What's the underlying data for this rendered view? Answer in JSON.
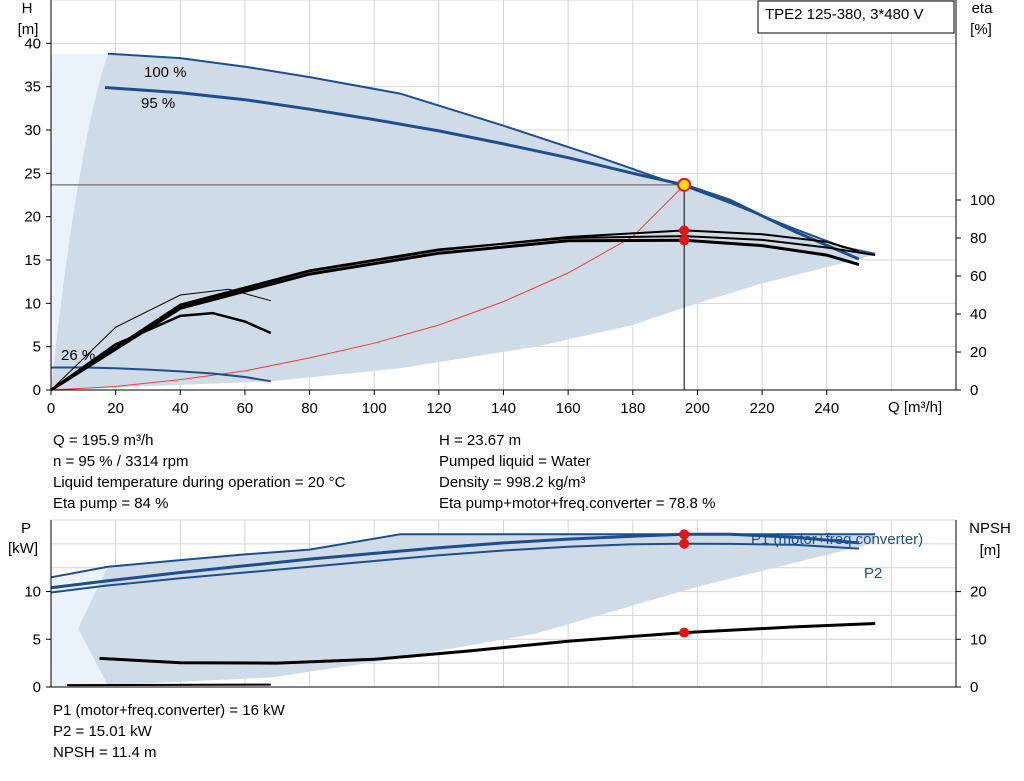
{
  "model_label": "TPE2 125-380, 3*480 V",
  "upper": {
    "y_left_title": "H",
    "y_left_unit": "[m]",
    "y_right_title": "eta",
    "y_right_unit": "[%]",
    "x_label": "Q [m³/h]",
    "curve_labels": [
      "100 %",
      "95 %",
      "26 %"
    ]
  },
  "lower": {
    "y_left_title": "P",
    "y_left_unit": "[kW]",
    "y_right_title": "NPSH",
    "y_right_unit": "[m]",
    "series_labels": [
      "P1 (motor+freq.converter)",
      "P2"
    ]
  },
  "operating_point": {
    "left": [
      "Q = 195.9 m³/h",
      "n = 95 % / 3314 rpm",
      "Liquid temperature during operation = 20 °C",
      "Eta pump = 84 %"
    ],
    "right": [
      "H = 23.67 m",
      "Pumped liquid = Water",
      "Density = 998.2 kg/m³",
      "Eta pump+motor+freq.converter = 78.8 %"
    ]
  },
  "power_summary": [
    "P1 (motor+freq.converter) = 16 kW",
    "P2 = 15.01 kW",
    "NPSH = 11.4 m"
  ],
  "colors": {
    "curve_blue": "#1f4e8c",
    "envelope_fill": "#cfdce8",
    "light_fill": "#eaf2fb",
    "grid": "#d4d4d4",
    "eta": "#000000",
    "system_curve": "#e8403a",
    "marker_red": "#ee1111",
    "marker_yellow": "#ffe000"
  },
  "chart_data": [
    {
      "type": "line",
      "title": "",
      "xlabel": "Q [m³/h]",
      "ylabel": "H [m]",
      "y2label": "eta [%]",
      "xlim": [
        0,
        280
      ],
      "ylim": [
        0,
        45
      ],
      "y2lim": [
        0,
        100
      ],
      "x_ticks": [
        0,
        20,
        40,
        60,
        80,
        100,
        120,
        140,
        160,
        180,
        200,
        220,
        240
      ],
      "y_ticks": [
        0,
        5,
        10,
        15,
        20,
        25,
        30,
        35,
        40
      ],
      "y2_ticks": [
        0,
        20,
        40,
        60,
        80,
        100
      ],
      "grid": true,
      "series": [
        {
          "name": "100 %",
          "axis": "H",
          "x": [
            0,
            17.6,
            40,
            60,
            80,
            108,
            140,
            170,
            190,
            197,
            210,
            230,
            245,
            255
          ],
          "y": [
            38.2,
            38.8,
            38.3,
            37.3,
            36.1,
            34.2,
            30.5,
            26.8,
            24.2,
            23.4,
            21.6,
            18.6,
            16.5,
            15.7
          ]
        },
        {
          "name": "95 %",
          "axis": "H",
          "x": [
            0,
            16.7,
            40,
            60,
            80,
            100,
            120,
            140,
            160,
            180,
            196,
            210,
            230,
            250
          ],
          "y": [
            34.4,
            34.9,
            34.3,
            33.5,
            32.4,
            31.2,
            29.9,
            28.4,
            26.8,
            25.0,
            23.67,
            21.9,
            18.3,
            15.1
          ]
        },
        {
          "name": "26 %",
          "axis": "H",
          "x": [
            0,
            10,
            20,
            30,
            40,
            50,
            60,
            68
          ],
          "y": [
            2.6,
            2.6,
            2.5,
            2.35,
            2.15,
            1.9,
            1.5,
            1.0
          ]
        },
        {
          "name": "envelope-lower",
          "axis": "H",
          "x": [
            0,
            68,
            108,
            150,
            180,
            200,
            220,
            250
          ],
          "y": [
            0,
            1.0,
            2.5,
            5.0,
            7.5,
            10.0,
            12.3,
            15.1
          ]
        },
        {
          "name": "system-curve",
          "axis": "H",
          "x": [
            0,
            20,
            40,
            60,
            80,
            100,
            120,
            140,
            160,
            180,
            196
          ],
          "y": [
            0,
            0.4,
            1.2,
            2.2,
            3.7,
            5.4,
            7.5,
            10.2,
            13.5,
            17.7,
            23.67
          ]
        },
        {
          "name": "eta-100",
          "axis": "eta",
          "x": [
            0,
            40,
            80,
            120,
            160,
            196,
            220,
            240,
            255
          ],
          "y": [
            0,
            45,
            63,
            74,
            80,
            81,
            79,
            75,
            71
          ]
        },
        {
          "name": "eta-95",
          "axis": "eta",
          "x": [
            0,
            40,
            80,
            120,
            160,
            196,
            220,
            240,
            250
          ],
          "y": [
            0,
            43,
            61,
            72,
            78.5,
            78.8,
            76,
            71,
            66
          ]
        },
        {
          "name": "eta-pump-95",
          "axis": "eta",
          "x": [
            0,
            40,
            80,
            120,
            160,
            196,
            220,
            240,
            250
          ],
          "y": [
            0,
            44,
            62.5,
            73.5,
            80.5,
            84,
            82,
            78,
            73
          ]
        },
        {
          "name": "eta-26-overall",
          "axis": "eta",
          "x": [
            0,
            20,
            40,
            50,
            60,
            68
          ],
          "y": [
            0,
            24,
            39,
            40.5,
            36,
            30
          ]
        },
        {
          "name": "eta-26-pump",
          "axis": "eta",
          "x": [
            0,
            20,
            40,
            55,
            68
          ],
          "y": [
            0,
            33,
            50,
            53,
            47
          ]
        }
      ],
      "operating_point": {
        "Q": 195.9,
        "H": 23.67,
        "eta_pump": 84,
        "eta_total": 78.8
      }
    },
    {
      "type": "line",
      "title": "",
      "ylabel": "P [kW]",
      "y2label": "NPSH [m]",
      "xlim": [
        0,
        280
      ],
      "ylim": [
        0,
        17.5
      ],
      "y2lim": [
        0,
        35
      ],
      "y_ticks": [
        0,
        5,
        10
      ],
      "y2_ticks": [
        0,
        10,
        20
      ],
      "grid": true,
      "series": [
        {
          "name": "P1 (motor+freq.converter)",
          "axis": "P",
          "x": [
            0,
            17.6,
            40,
            60,
            80,
            108,
            140,
            170,
            196,
            220,
            240,
            255
          ],
          "y": [
            11.5,
            12.6,
            13.3,
            13.9,
            14.4,
            16.0,
            16.0,
            16.0,
            16.0,
            16.0,
            16.0,
            16.0
          ]
        },
        {
          "name": "P2",
          "axis": "P",
          "x": [
            0,
            16.7,
            40,
            60,
            80,
            100,
            120,
            140,
            160,
            180,
            196,
            210,
            230,
            250
          ],
          "y": [
            9.9,
            10.6,
            11.4,
            12.0,
            12.6,
            13.2,
            13.8,
            14.3,
            14.7,
            14.95,
            15.01,
            15.0,
            14.9,
            14.5
          ]
        },
        {
          "name": "P1-95",
          "axis": "P",
          "x": [
            0,
            16.7,
            40,
            60,
            80,
            100,
            120,
            140,
            160,
            180,
            196,
            210,
            230,
            250
          ],
          "y": [
            10.4,
            11.1,
            12.0,
            12.7,
            13.4,
            14.0,
            14.6,
            15.1,
            15.5,
            15.8,
            16.0,
            16.0,
            15.7,
            15.1
          ]
        },
        {
          "name": "NPSH",
          "axis": "NPSH",
          "x": [
            15,
            40,
            70,
            100,
            130,
            160,
            196,
            230,
            255
          ],
          "y": [
            6.0,
            5.1,
            5.0,
            5.8,
            7.6,
            9.6,
            11.4,
            12.6,
            13.3
          ]
        },
        {
          "name": "P1-26",
          "axis": "P",
          "x": [
            5,
            68
          ],
          "y": [
            0.2,
            0.25
          ]
        }
      ],
      "operating_point": {
        "Q": 195.9,
        "P1": 16,
        "P2": 15.01,
        "NPSH": 11.4
      }
    }
  ]
}
